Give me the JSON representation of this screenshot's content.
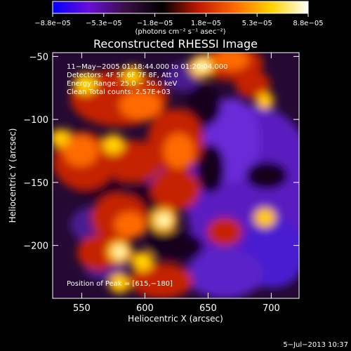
{
  "chart_data": {
    "type": "heatmap",
    "title": "Reconstructed RHESSI Image",
    "xlabel": "Heliocentric X (arcsec)",
    "ylabel": "Heliocentric Y (arcsec)",
    "xlim": [
      527,
      722
    ],
    "ylim": [
      -242,
      -47
    ],
    "xticks": [
      550,
      600,
      650,
      700
    ],
    "xtick_labels": [
      "550",
      "600",
      "650",
      "700"
    ],
    "yticks": [
      -50,
      -100,
      -150,
      -200
    ],
    "ytick_labels": [
      "−50",
      "−100",
      "−150",
      "−200"
    ],
    "colorbar": {
      "range": [
        -8.8e-05,
        8.8e-05
      ],
      "tick_labels": [
        "−8.8e−05",
        "−5.3e−05",
        "−1.8e−05",
        "1.8e−05",
        "5.3e−05",
        "8.8e−05"
      ],
      "unit_text": "(photons cm⁻² s⁻¹ asec⁻²)",
      "colors": [
        "#0000ff",
        "#6a0fd6",
        "#3a0e45",
        "#000000",
        "#c21800",
        "#ff6a00",
        "#ffd400",
        "#ffffff"
      ]
    },
    "annotations": [
      "11−May−2005 01:18:44.000 to 01:20:04.000",
      "Detectors: 4F 5F 6F 7F 8F, Att 0",
      "Energy Range: 25.0 − 50.0 keV",
      "Clean     Total counts: 2.57E+03"
    ],
    "peak_text": "Position of Peak = [615,−180]",
    "bright_sources": [
      {
        "x": 553,
        "y": -72,
        "value": 7.5e-05
      },
      {
        "x": 590,
        "y": -65,
        "value": 6e-05
      },
      {
        "x": 645,
        "y": -58,
        "value": 8e-05
      },
      {
        "x": 575,
        "y": -120,
        "value": 7e-05
      },
      {
        "x": 533,
        "y": -115,
        "value": 6e-05
      },
      {
        "x": 615,
        "y": -180,
        "value": 8.8e-05
      },
      {
        "x": 580,
        "y": -205,
        "value": 8e-05
      },
      {
        "x": 598,
        "y": -213,
        "value": 7e-05
      },
      {
        "x": 580,
        "y": -230,
        "value": 6.5e-05
      },
      {
        "x": 695,
        "y": -178,
        "value": 6.5e-05
      },
      {
        "x": 695,
        "y": -85,
        "value": 5e-05
      }
    ]
  },
  "footer": {
    "timestamp": "5−Jul−2013 10:37"
  },
  "colors": {
    "background": "#000000",
    "foreground": "#ffffff"
  }
}
